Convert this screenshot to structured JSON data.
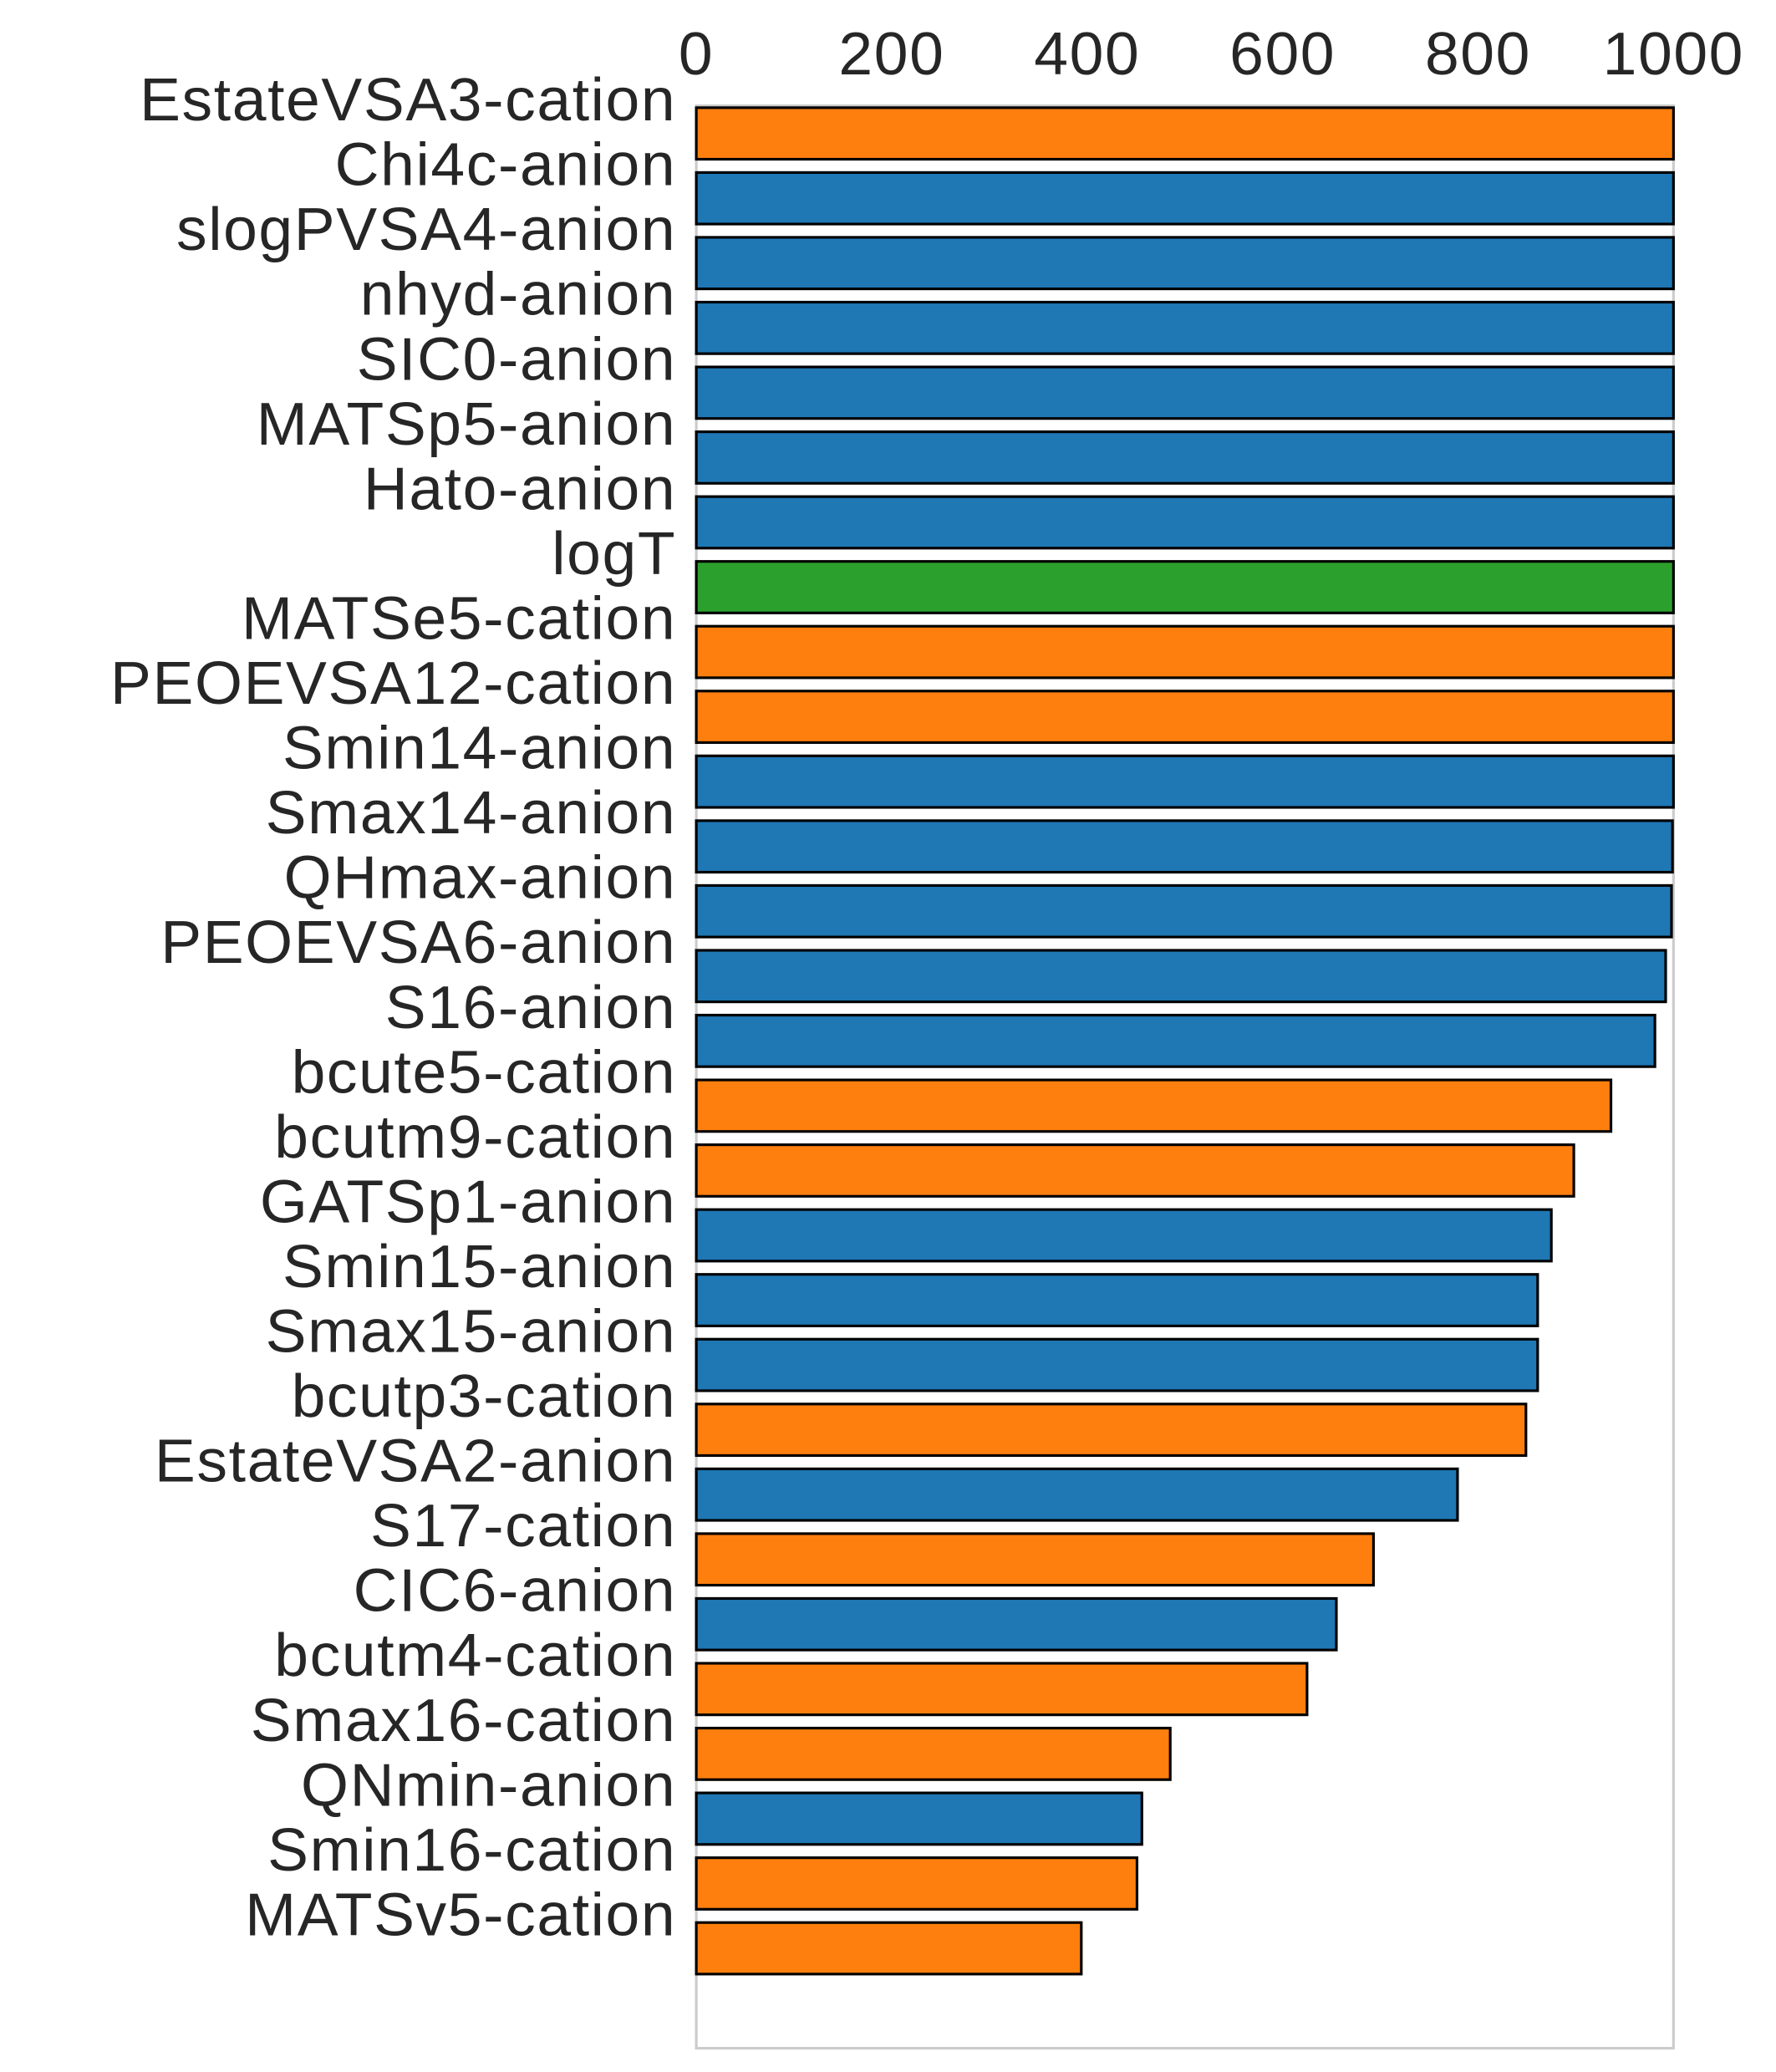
{
  "chart_data": {
    "type": "barh",
    "categories": [
      "EstateVSA3-cation",
      "Chi4c-anion",
      "slogPVSA4-anion",
      "nhyd-anion",
      "SIC0-anion",
      "MATSp5-anion",
      "Hato-anion",
      "logT",
      "MATSe5-cation",
      "PEOEVSA12-cation",
      "Smin14-anion",
      "Smax14-anion",
      "QHmax-anion",
      "PEOEVSA6-anion",
      "S16-anion",
      "bcute5-cation",
      "bcutm9-cation",
      "GATSp1-anion",
      "Smin15-anion",
      "Smax15-anion",
      "bcutp3-cation",
      "EstateVSA2-anion",
      "S17-cation",
      "CIC6-anion",
      "bcutm4-cation",
      "Smax16-cation",
      "QNmin-anion",
      "Smin16-cation",
      "MATSv5-cation"
    ],
    "values": [
      1000,
      1000,
      1000,
      1000,
      1000,
      1000,
      1000,
      1000,
      1000,
      1000,
      1000,
      999,
      998,
      992,
      981,
      936,
      898,
      875,
      861,
      861,
      849,
      779,
      693,
      655,
      625,
      485,
      456,
      451,
      394
    ],
    "colors": [
      "#ff7f0e",
      "#1f77b4",
      "#1f77b4",
      "#1f77b4",
      "#1f77b4",
      "#1f77b4",
      "#1f77b4",
      "#2ca02c",
      "#ff7f0e",
      "#ff7f0e",
      "#1f77b4",
      "#1f77b4",
      "#1f77b4",
      "#1f77b4",
      "#1f77b4",
      "#ff7f0e",
      "#ff7f0e",
      "#1f77b4",
      "#1f77b4",
      "#1f77b4",
      "#ff7f0e",
      "#1f77b4",
      "#ff7f0e",
      "#1f77b4",
      "#ff7f0e",
      "#ff7f0e",
      "#1f77b4",
      "#ff7f0e",
      "#ff7f0e"
    ],
    "xlim": [
      0,
      1000
    ],
    "xticks": [
      0,
      200,
      400,
      600,
      800,
      1000
    ],
    "grid": false
  }
}
